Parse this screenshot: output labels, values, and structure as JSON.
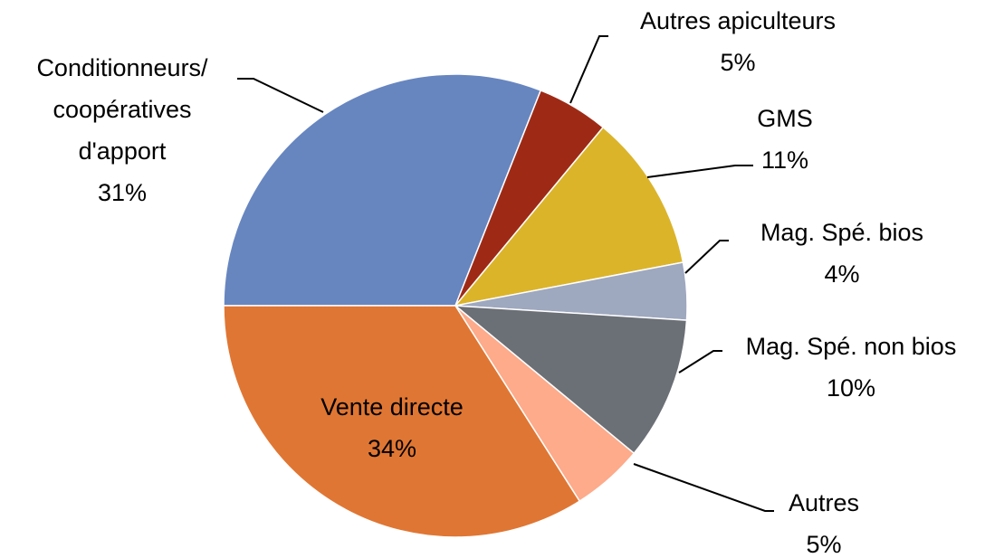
{
  "chart_data": {
    "type": "pie",
    "categories": [
      "Conditionneurs/ coopératives d'apport",
      "Autres apiculteurs",
      "GMS",
      "Mag. Spé. bios",
      "Mag. Spé. non bios",
      "Autres",
      "Vente directe"
    ],
    "values": [
      31,
      5,
      11,
      4,
      10,
      5,
      34
    ],
    "value_labels": [
      "31%",
      "5%",
      "11%",
      "4%",
      "10%",
      "5%",
      "34%"
    ],
    "colors": [
      "#6786c0",
      "#9e2a16",
      "#dbb42a",
      "#9ea8bf",
      "#6b6f76",
      "#fdab8b",
      "#e07633"
    ]
  }
}
